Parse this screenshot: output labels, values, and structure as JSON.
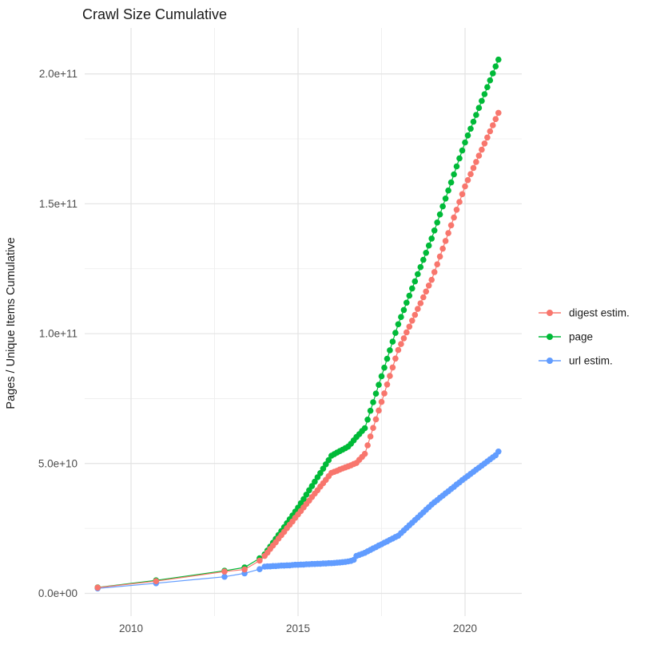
{
  "title": "Crawl Size Cumulative",
  "ylabel": "Pages / Unique Items Cumulative",
  "chart_data": {
    "type": "scatter",
    "title": "Crawl Size Cumulative",
    "xlabel": "",
    "ylabel": "Pages / Unique Items Cumulative",
    "unit_note": "values are in billions (1e9) of pages / unique items, cumulative",
    "grid": "on",
    "legend_position": "right",
    "x_axis": {
      "ticks": [
        2010,
        2015,
        2020
      ],
      "tick_labels": [
        "2010",
        "2015",
        "2020"
      ],
      "minor_ticks": [
        2012.5,
        2017.5
      ],
      "range": [
        2008.6,
        2021.7
      ]
    },
    "y_axis": {
      "ticks_billions": [
        0,
        50,
        100,
        150,
        200
      ],
      "tick_labels": [
        "0.0e+00",
        "5.0e+10",
        "1.0e+11",
        "1.5e+11",
        "2.0e+11"
      ],
      "minor_ticks_billions": [
        25,
        75,
        125,
        175
      ],
      "range_billions": [
        -8,
        217
      ]
    },
    "x_years": [
      2009,
      2010.75,
      2012.8,
      2013.4,
      2013.85,
      2014,
      2014.083,
      2014.167,
      2014.25,
      2014.333,
      2014.417,
      2014.5,
      2014.583,
      2014.667,
      2014.75,
      2014.833,
      2014.917,
      2015,
      2015.083,
      2015.167,
      2015.25,
      2015.333,
      2015.417,
      2015.5,
      2015.583,
      2015.667,
      2015.75,
      2015.833,
      2015.917,
      2016,
      2016.083,
      2016.167,
      2016.25,
      2016.333,
      2016.417,
      2016.5,
      2016.583,
      2016.667,
      2016.75,
      2016.833,
      2016.917,
      2017,
      2017.083,
      2017.167,
      2017.25,
      2017.333,
      2017.417,
      2017.5,
      2017.583,
      2017.667,
      2017.75,
      2017.833,
      2017.917,
      2018,
      2018.083,
      2018.167,
      2018.25,
      2018.333,
      2018.417,
      2018.5,
      2018.583,
      2018.667,
      2018.75,
      2018.833,
      2018.917,
      2019,
      2019.083,
      2019.167,
      2019.25,
      2019.333,
      2019.417,
      2019.5,
      2019.583,
      2019.667,
      2019.75,
      2019.833,
      2019.917,
      2020,
      2020.083,
      2020.167,
      2020.25,
      2020.333,
      2020.417,
      2020.5,
      2020.583,
      2020.667,
      2020.75,
      2020.833,
      2020.917,
      2021
    ],
    "series": [
      {
        "name": "digest estim.",
        "color": "#F8766D",
        "values_billions": [
          2.2,
          4.7,
          8.4,
          9.2,
          12.6,
          14.4,
          15.7,
          17.1,
          18.4,
          19.7,
          21.1,
          22.4,
          23.7,
          25.1,
          26.4,
          27.7,
          29.1,
          30.4,
          31.7,
          33.1,
          34.4,
          35.7,
          37.1,
          38.4,
          39.7,
          41.1,
          42.4,
          43.7,
          45.1,
          46.4,
          46.8,
          47.2,
          47.7,
          48.1,
          48.5,
          48.9,
          49.3,
          49.8,
          50.2,
          51.4,
          52.5,
          53.7,
          57.0,
          60.4,
          63.7,
          67.0,
          70.4,
          73.7,
          77.0,
          80.4,
          83.7,
          87.0,
          90.4,
          93.7,
          96.0,
          98.2,
          100.5,
          102.7,
          105.0,
          107.2,
          109.5,
          111.7,
          114.0,
          116.2,
          118.5,
          120.7,
          123.7,
          126.7,
          129.7,
          132.7,
          135.7,
          138.7,
          141.7,
          144.7,
          147.7,
          150.7,
          153.7,
          156.7,
          159.1,
          161.4,
          163.8,
          166.1,
          168.5,
          170.8,
          173.2,
          175.5,
          177.9,
          180.2,
          182.6,
          185.0
        ]
      },
      {
        "name": "page",
        "color": "#00BA38",
        "values_billions": [
          2.3,
          5.0,
          8.7,
          10.0,
          13.5,
          15.0,
          16.5,
          18.0,
          19.5,
          21.0,
          22.5,
          24.0,
          25.5,
          27.0,
          28.5,
          30.0,
          31.5,
          33.0,
          34.7,
          36.3,
          38.0,
          39.7,
          41.3,
          43.0,
          44.7,
          46.3,
          48.0,
          49.7,
          51.3,
          53.0,
          53.6,
          54.2,
          54.8,
          55.3,
          55.9,
          56.5,
          57.6,
          58.9,
          60.2,
          61.3,
          62.5,
          63.6,
          66.9,
          70.3,
          73.6,
          76.9,
          80.3,
          83.6,
          86.9,
          90.3,
          93.6,
          96.9,
          100.3,
          103.6,
          106.4,
          109.1,
          111.9,
          114.6,
          117.4,
          120.1,
          122.9,
          125.6,
          128.4,
          131.1,
          133.9,
          136.6,
          139.7,
          142.8,
          145.9,
          149.0,
          152.0,
          155.1,
          158.2,
          161.3,
          164.4,
          167.5,
          170.5,
          173.6,
          176.3,
          178.9,
          181.6,
          184.2,
          186.9,
          189.6,
          192.2,
          194.9,
          197.5,
          200.2,
          202.9,
          205.5
        ]
      },
      {
        "name": "url estim.",
        "color": "#619CFF",
        "values_billions": [
          1.9,
          3.9,
          6.4,
          7.7,
          9.3,
          10.3,
          10.4,
          10.4,
          10.5,
          10.5,
          10.6,
          10.7,
          10.7,
          10.8,
          10.8,
          10.9,
          11.0,
          11.0,
          11.1,
          11.1,
          11.2,
          11.2,
          11.3,
          11.3,
          11.4,
          11.4,
          11.5,
          11.5,
          11.6,
          11.6,
          11.7,
          11.8,
          11.9,
          12.0,
          12.1,
          12.3,
          12.5,
          12.9,
          14.4,
          14.8,
          15.2,
          15.6,
          16.2,
          16.7,
          17.3,
          17.8,
          18.4,
          18.9,
          19.5,
          20.0,
          20.6,
          21.1,
          21.7,
          22.2,
          23.2,
          24.2,
          25.2,
          26.2,
          27.2,
          28.2,
          29.2,
          30.2,
          31.2,
          32.2,
          33.2,
          34.2,
          35.1,
          35.9,
          36.8,
          37.6,
          38.5,
          39.3,
          40.2,
          41.0,
          41.9,
          42.7,
          43.6,
          44.4,
          45.2,
          46.0,
          46.8,
          47.6,
          48.4,
          49.2,
          50.0,
          50.8,
          51.6,
          52.4,
          53.2,
          54.6
        ]
      }
    ]
  },
  "legend": {
    "items": [
      {
        "label": "digest estim.",
        "color": "#F8766D"
      },
      {
        "label": "page",
        "color": "#00BA38"
      },
      {
        "label": "url estim.",
        "color": "#619CFF"
      }
    ]
  },
  "style": {
    "grid_major_color": "#e3e3e3",
    "grid_minor_color": "#ededed",
    "background": "#ffffff"
  }
}
